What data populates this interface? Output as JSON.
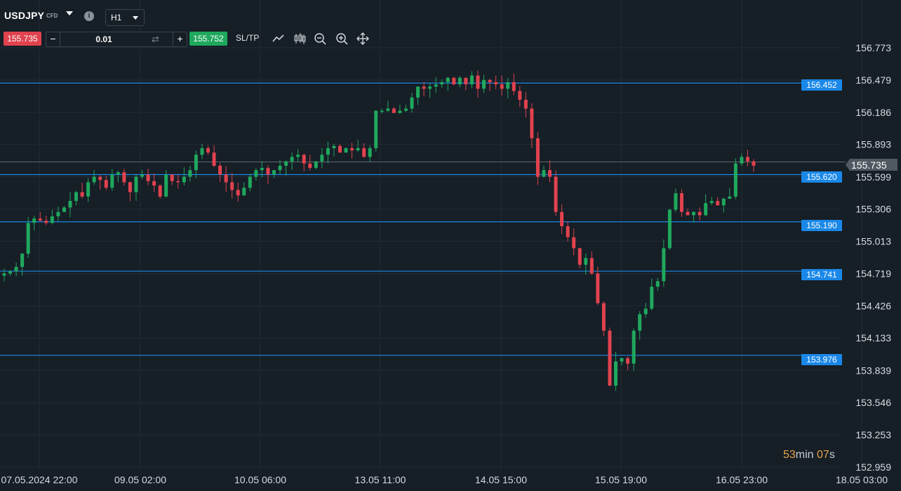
{
  "instrument": {
    "symbol": "USDJPY",
    "type": "CFD",
    "timeframe": "H1"
  },
  "trade_panel": {
    "sell_price": "155.735",
    "buy_price": "155.752",
    "lot": "0.01",
    "minus": "−",
    "plus": "+",
    "sltp_label": "SL/TP"
  },
  "icons": [
    "chevron-down-icon",
    "info-icon",
    "swap-icon",
    "line-chart-icon",
    "candles-icon",
    "zoom-out-icon",
    "zoom-in-icon",
    "move-icon"
  ],
  "colors": {
    "background": "#161e26",
    "bull": "#1fa85d",
    "bear": "#e0424e",
    "level_line": "#1a88e8",
    "countdown": "#e7a24a"
  },
  "countdown": {
    "minutes": "53",
    "min_unit": "min",
    "seconds": "07",
    "sec_unit": "s"
  },
  "chart_data": {
    "type": "candlestick",
    "y_ticks": [
      "156.773",
      "156.479",
      "156.186",
      "155.893",
      "155.599",
      "155.306",
      "155.013",
      "154.719",
      "154.426",
      "154.133",
      "153.839",
      "153.546",
      "153.253",
      "152.959"
    ],
    "y_tick_values": [
      156.773,
      156.479,
      156.186,
      155.893,
      155.599,
      155.306,
      155.013,
      154.719,
      154.426,
      154.133,
      153.839,
      153.546,
      153.253,
      152.959
    ],
    "x_ticks": [
      "07.05.2024 22:00",
      "09.05 02:00",
      "10.05 06:00",
      "13.05 11:00",
      "14.05 15:00",
      "15.05 19:00",
      "16.05 23:00",
      "18.05 03:00"
    ],
    "horizontal_levels": [
      "156.452",
      "155.620",
      "155.190",
      "154.741",
      "153.976"
    ],
    "current_price": "155.735",
    "grid": true,
    "close_path": [
      [
        0,
        154.72
      ],
      [
        1,
        154.74
      ],
      [
        2,
        154.78
      ],
      [
        3,
        154.9
      ],
      [
        4,
        155.18
      ],
      [
        5,
        155.22
      ],
      [
        6,
        155.2
      ],
      [
        7,
        155.18
      ],
      [
        8,
        155.24
      ],
      [
        9,
        155.28
      ],
      [
        10,
        155.32
      ],
      [
        11,
        155.38
      ],
      [
        12,
        155.46
      ],
      [
        13,
        155.42
      ],
      [
        14,
        155.55
      ],
      [
        15,
        155.6
      ],
      [
        16,
        155.57
      ],
      [
        17,
        155.5
      ],
      [
        18,
        155.62
      ],
      [
        19,
        155.64
      ],
      [
        20,
        155.55
      ],
      [
        21,
        155.46
      ],
      [
        22,
        155.6
      ],
      [
        23,
        155.62
      ],
      [
        24,
        155.56
      ],
      [
        25,
        155.52
      ],
      [
        26,
        155.42
      ],
      [
        27,
        155.62
      ],
      [
        28,
        155.56
      ],
      [
        29,
        155.55
      ],
      [
        30,
        155.6
      ],
      [
        31,
        155.66
      ],
      [
        32,
        155.8
      ],
      [
        33,
        155.86
      ],
      [
        34,
        155.82
      ],
      [
        35,
        155.7
      ],
      [
        36,
        155.62
      ],
      [
        37,
        155.55
      ],
      [
        38,
        155.48
      ],
      [
        39,
        155.43
      ],
      [
        40,
        155.5
      ],
      [
        41,
        155.6
      ],
      [
        42,
        155.66
      ],
      [
        43,
        155.68
      ],
      [
        44,
        155.62
      ],
      [
        45,
        155.66
      ],
      [
        46,
        155.7
      ],
      [
        47,
        155.74
      ],
      [
        48,
        155.78
      ],
      [
        49,
        155.8
      ],
      [
        50,
        155.72
      ],
      [
        51,
        155.68
      ],
      [
        52,
        155.74
      ],
      [
        53,
        155.8
      ],
      [
        54,
        155.86
      ],
      [
        55,
        155.88
      ],
      [
        56,
        155.82
      ],
      [
        57,
        155.86
      ],
      [
        58,
        155.84
      ],
      [
        59,
        155.86
      ],
      [
        60,
        155.78
      ],
      [
        61,
        155.86
      ],
      [
        62,
        156.2
      ],
      [
        63,
        156.2
      ],
      [
        64,
        156.22
      ],
      [
        65,
        156.18
      ],
      [
        66,
        156.2
      ],
      [
        67,
        156.22
      ],
      [
        68,
        156.32
      ],
      [
        69,
        156.42
      ],
      [
        70,
        156.4
      ],
      [
        71,
        156.42
      ],
      [
        72,
        156.44
      ],
      [
        73,
        156.46
      ],
      [
        74,
        156.5
      ],
      [
        75,
        156.44
      ],
      [
        76,
        156.5
      ],
      [
        77,
        156.44
      ],
      [
        78,
        156.52
      ],
      [
        79,
        156.4
      ],
      [
        80,
        156.48
      ],
      [
        81,
        156.46
      ],
      [
        82,
        156.44
      ],
      [
        83,
        156.4
      ],
      [
        84,
        156.46
      ],
      [
        85,
        156.38
      ],
      [
        86,
        156.3
      ],
      [
        87,
        156.22
      ],
      [
        88,
        155.95
      ],
      [
        89,
        155.6
      ],
      [
        90,
        155.66
      ],
      [
        91,
        155.6
      ],
      [
        92,
        155.28
      ],
      [
        93,
        155.15
      ],
      [
        94,
        155.05
      ],
      [
        95,
        154.95
      ],
      [
        96,
        154.8
      ],
      [
        97,
        154.86
      ],
      [
        98,
        154.72
      ],
      [
        99,
        154.45
      ],
      [
        100,
        154.2
      ],
      [
        101,
        153.7
      ],
      [
        102,
        153.92
      ],
      [
        103,
        153.95
      ],
      [
        104,
        153.9
      ],
      [
        105,
        154.2
      ],
      [
        106,
        154.35
      ],
      [
        107,
        154.4
      ],
      [
        108,
        154.6
      ],
      [
        109,
        154.65
      ],
      [
        110,
        154.95
      ],
      [
        111,
        155.3
      ],
      [
        112,
        155.45
      ],
      [
        113,
        155.28
      ],
      [
        114,
        155.25
      ],
      [
        115,
        155.28
      ],
      [
        116,
        155.25
      ],
      [
        117,
        155.36
      ],
      [
        118,
        155.38
      ],
      [
        119,
        155.34
      ],
      [
        120,
        155.4
      ],
      [
        121,
        155.42
      ],
      [
        122,
        155.72
      ],
      [
        123,
        155.78
      ],
      [
        124,
        155.74
      ],
      [
        125,
        155.7
      ]
    ]
  }
}
